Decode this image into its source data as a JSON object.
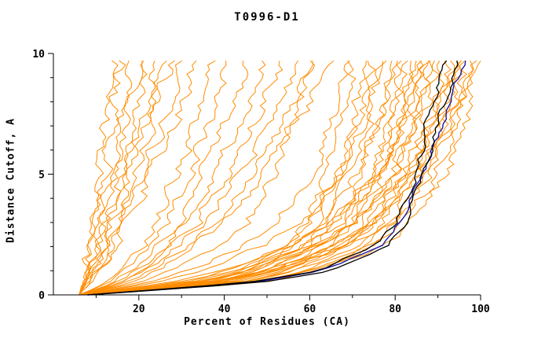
{
  "window": {
    "title": "T0996-D1"
  },
  "chart_data": {
    "type": "line",
    "title": "T0996-D1",
    "xlabel": "Percent of Residues (CA)",
    "ylabel": "Distance Cutoff, A",
    "xlim": [
      0,
      100
    ],
    "ylim": [
      0,
      10
    ],
    "x_major_ticks": [
      20,
      40,
      60,
      80,
      100
    ],
    "x_minor_ticks": [
      10,
      30,
      50,
      70,
      90
    ],
    "y_major_ticks": [
      0,
      5,
      10
    ],
    "y_minor_ticks": [
      1,
      2,
      3,
      4,
      6,
      7,
      8,
      9
    ],
    "grid": false,
    "legend": "none",
    "colors": {
      "prediction": "#ff8c00",
      "highlight_black": "#000000",
      "highlight_blue": "#1a1aa6"
    },
    "anchors_y": [
      0,
      0.5,
      1,
      2,
      3,
      5,
      7.5,
      10
    ],
    "series_note": "Each curve lists percent-of-residues (x) at the distance cutoffs in anchors_y; orange = predictions, black/blue = highlighted models",
    "orange_curves": [
      [
        6,
        6.8,
        7.4,
        8.4,
        9.2,
        10.8,
        12.6,
        14
      ],
      [
        6,
        7,
        7.8,
        9,
        10,
        12,
        14.2,
        16
      ],
      [
        6,
        7.2,
        8.2,
        9.6,
        10.8,
        13.2,
        15.8,
        18
      ],
      [
        6,
        7.4,
        8.5,
        10.2,
        11.6,
        14.4,
        17.5,
        20
      ],
      [
        6,
        7.6,
        8.9,
        10.8,
        12.4,
        15.6,
        19.1,
        22
      ],
      [
        6,
        7.8,
        9.2,
        11.4,
        13.2,
        16.8,
        20.8,
        24
      ],
      [
        6,
        8,
        9.6,
        12,
        14,
        18,
        22.4,
        26
      ],
      [
        6,
        8.2,
        10,
        12.6,
        14.8,
        19.2,
        24,
        28
      ],
      [
        6,
        8.5,
        10.5,
        13.5,
        16,
        21,
        26.5,
        31
      ],
      [
        6,
        8.8,
        11,
        14.4,
        17.2,
        22.8,
        29,
        34
      ],
      [
        6,
        12.4,
        15.6,
        20.4,
        24.2,
        29,
        34.2,
        38
      ],
      [
        6,
        13.2,
        16.8,
        22.2,
        26.5,
        31.9,
        37.7,
        42
      ],
      [
        6,
        14,
        18,
        24,
        28.8,
        34.8,
        41.2,
        46
      ],
      [
        6,
        14.8,
        19.2,
        25.8,
        31.1,
        37.7,
        44.7,
        50
      ],
      [
        6,
        15.6,
        20.4,
        27.6,
        33.4,
        40.6,
        48.2,
        54
      ],
      [
        6,
        16.4,
        21.6,
        29.4,
        35.6,
        43.4,
        51.8,
        58
      ],
      [
        6,
        17.2,
        22.8,
        31.2,
        37.9,
        46.3,
        55.3,
        62
      ],
      [
        6,
        18,
        24,
        33,
        40.2,
        49.2,
        58.8,
        66
      ],
      [
        6,
        34.8,
        44.4,
        54,
        59.1,
        64.2,
        68.1,
        70
      ],
      [
        6,
        36.2,
        46.2,
        56.3,
        61.6,
        67,
        71,
        73
      ],
      [
        6,
        37.5,
        48,
        58.5,
        64.1,
        69.7,
        73.9,
        76
      ],
      [
        6,
        38.9,
        49.8,
        60.8,
        66.6,
        72.4,
        76.8,
        79
      ],
      [
        6,
        40.2,
        51.6,
        63,
        69.1,
        75.2,
        79.7,
        82
      ],
      [
        6,
        41.1,
        52.8,
        64.5,
        70.7,
        77,
        81.7,
        84
      ],
      [
        6,
        42,
        54,
        66,
        72.4,
        78.8,
        83.6,
        86
      ],
      [
        6,
        42.9,
        55.2,
        67.5,
        74.1,
        80.6,
        85.5,
        88
      ],
      [
        6,
        43.8,
        56.4,
        69,
        75.7,
        82.4,
        87.5,
        90
      ],
      [
        6,
        44.7,
        57.6,
        70.5,
        77.4,
        84.3,
        89.4,
        92
      ],
      [
        6,
        45.6,
        58.8,
        72,
        79,
        86.1,
        91.4,
        94
      ],
      [
        6,
        46.5,
        60,
        73.5,
        80.7,
        87.9,
        93.3,
        96
      ],
      [
        6,
        47.4,
        61.2,
        75,
        82.4,
        89.7,
        95.2,
        98
      ],
      [
        6,
        48.3,
        62.4,
        76.5,
        84,
        91.5,
        97.2,
        100
      ],
      [
        6,
        30.2,
        40.5,
        52.9,
        59.8,
        66.7,
        71.6,
        75
      ],
      [
        6,
        31.9,
        43,
        56.3,
        63.7,
        71.1,
        76.3,
        80
      ],
      [
        6,
        33.7,
        45.5,
        59.7,
        67.6,
        75.5,
        81.1,
        85
      ],
      [
        6,
        35.4,
        48,
        63.1,
        71.5,
        79.9,
        85.8,
        90
      ],
      [
        6,
        37.2,
        50.5,
        66.5,
        75.4,
        84.3,
        90.6,
        95
      ],
      [
        6,
        38.6,
        52.5,
        69.2,
        78.5,
        87.8,
        94.4,
        99
      ],
      [
        6,
        34.4,
        46.5,
        61.1,
        69.2,
        77.3,
        83,
        87
      ],
      [
        6,
        36.5,
        49.5,
        65.2,
        73.9,
        82.6,
        88.7,
        93
      ],
      [
        6,
        37.9,
        51.5,
        67.9,
        77,
        86.1,
        92.5,
        97
      ],
      [
        6,
        33,
        44.5,
        58.4,
        66.1,
        73.8,
        79.2,
        83
      ],
      [
        6,
        24,
        34.8,
        49.2,
        57.8,
        67.2,
        73.7,
        78
      ],
      [
        6,
        26.5,
        38.8,
        55.2,
        65,
        75.7,
        83.1,
        88
      ],
      [
        6,
        28.5,
        42,
        60,
        70.8,
        82.5,
        90.6,
        96
      ],
      [
        6,
        22,
        31.6,
        44.4,
        52.1,
        60.4,
        66.2,
        70
      ],
      [
        6,
        19.5,
        27.6,
        38.4,
        44.9,
        51.9,
        56.8,
        60
      ]
    ],
    "black_curves": [
      [
        8,
        45,
        62,
        75,
        80,
        85,
        88,
        92
      ],
      [
        8,
        48,
        65,
        78,
        82.5,
        86.5,
        90.5,
        95
      ]
    ],
    "blue_curves": [
      [
        8,
        46,
        63,
        76.5,
        81,
        86.5,
        92,
        97
      ]
    ]
  }
}
